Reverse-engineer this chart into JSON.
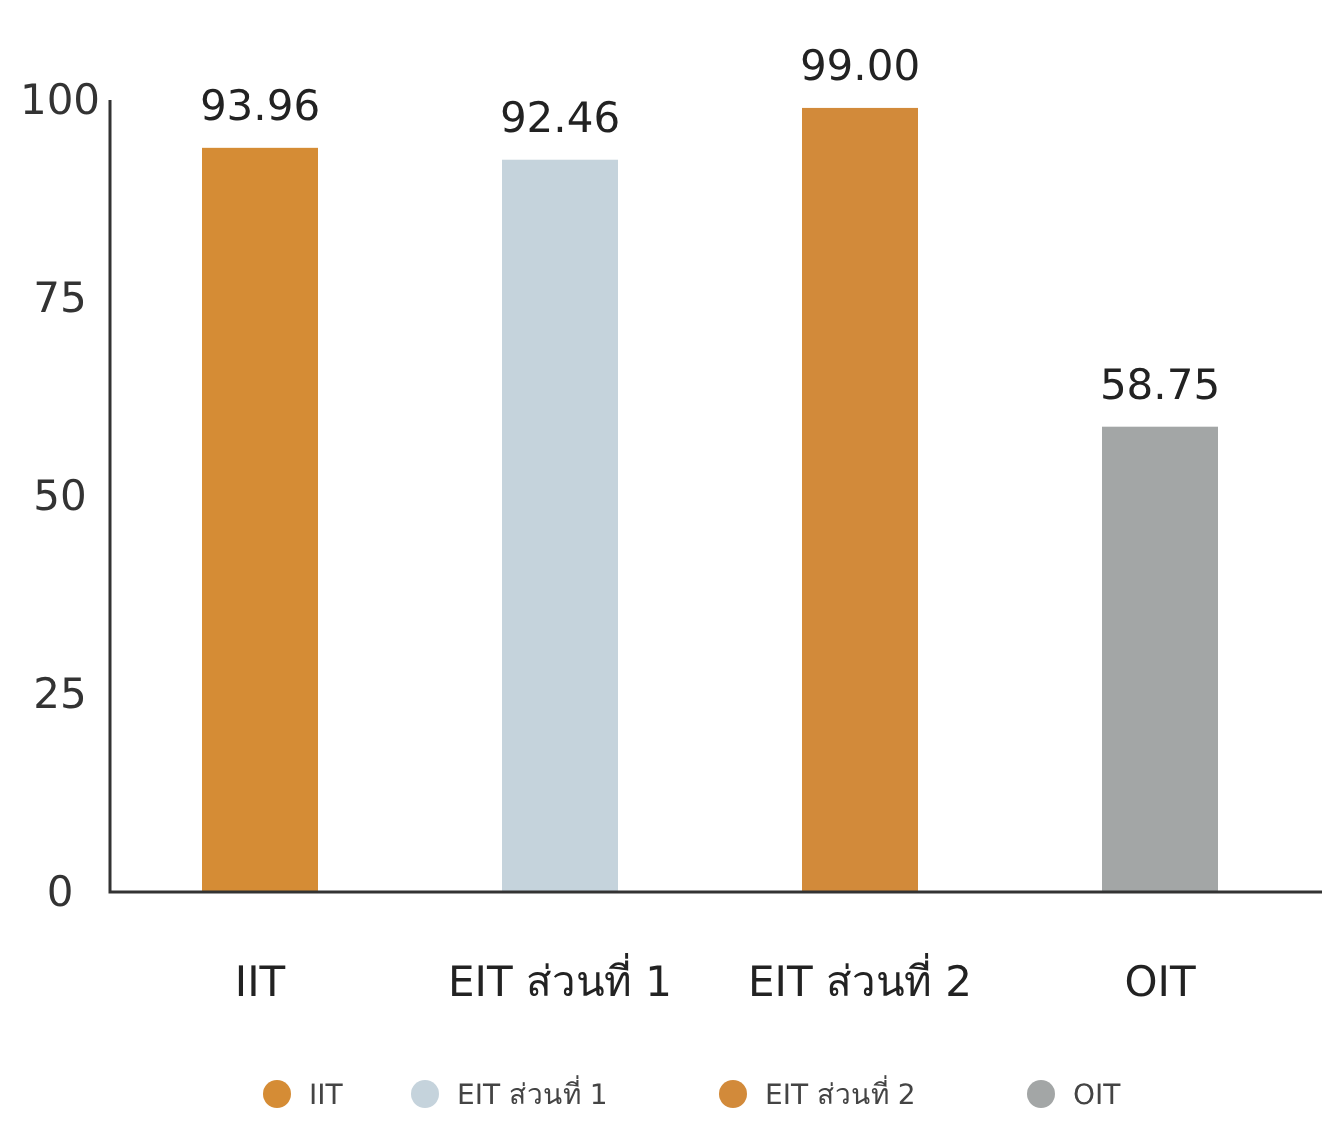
{
  "chart_data": {
    "type": "bar",
    "categories": [
      "IIT",
      "EIT ส่วนที่ 1",
      "EIT ส่วนที่ 2",
      "OIT"
    ],
    "series": [
      {
        "name": "IIT",
        "color": "#d58c35",
        "values": [
          93.96,
          null,
          null,
          null
        ],
        "value_labels": [
          "93.96",
          null,
          null,
          null
        ]
      },
      {
        "name": "EIT ส่วนที่ 1",
        "color": "#c5d3dc",
        "values": [
          null,
          92.46,
          null,
          null
        ],
        "value_labels": [
          null,
          "92.46",
          null,
          null
        ]
      },
      {
        "name": "EIT ส่วนที่ 2",
        "color": "#d28a3a",
        "values": [
          null,
          null,
          99.0,
          null
        ],
        "value_labels": [
          null,
          null,
          "99.00",
          null
        ]
      },
      {
        "name": "OIT",
        "color": "#a3a6a6",
        "values": [
          null,
          null,
          null,
          58.75
        ],
        "value_labels": [
          null,
          null,
          null,
          "58.75"
        ]
      }
    ],
    "stacked": true,
    "ylim": [
      0,
      100
    ],
    "yticks": [
      0,
      25,
      50,
      75,
      100
    ],
    "legend": "bottom",
    "grid": false
  }
}
